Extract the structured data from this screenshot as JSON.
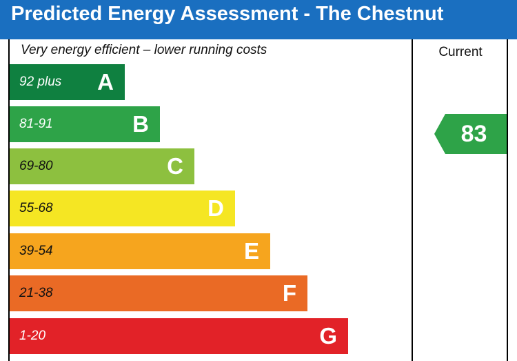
{
  "header": {
    "title": "Predicted Energy Assessment - The Chestnut"
  },
  "labels": {
    "top_note": "Very energy efficient – lower running costs",
    "current_column": "Current"
  },
  "colors": {
    "header_bg": "#1a6fc0",
    "A": "#0f8040",
    "B": "#2ea348",
    "C": "#8dc03f",
    "D": "#f5e623",
    "E": "#f6a51e",
    "F": "#ea6a25",
    "G": "#e22228"
  },
  "chart_data": {
    "type": "bar",
    "categories": [
      "A",
      "B",
      "C",
      "D",
      "E",
      "F",
      "G"
    ],
    "bands": [
      {
        "letter": "A",
        "range": "92 plus",
        "color": "#0f8040",
        "range_text_color": "#ffffff"
      },
      {
        "letter": "B",
        "range": "81-91",
        "color": "#2ea348",
        "range_text_color": "#ffffff"
      },
      {
        "letter": "C",
        "range": "69-80",
        "color": "#8dc03f",
        "range_text_color": "#111111"
      },
      {
        "letter": "D",
        "range": "55-68",
        "color": "#f5e623",
        "range_text_color": "#111111"
      },
      {
        "letter": "E",
        "range": "39-54",
        "color": "#f6a51e",
        "range_text_color": "#111111"
      },
      {
        "letter": "F",
        "range": "21-38",
        "color": "#ea6a25",
        "range_text_color": "#111111"
      },
      {
        "letter": "G",
        "range": "1-20",
        "color": "#e22228",
        "range_text_color": "#ffffff"
      }
    ],
    "current": {
      "value": "83",
      "band": "B",
      "color": "#2ea348"
    }
  }
}
